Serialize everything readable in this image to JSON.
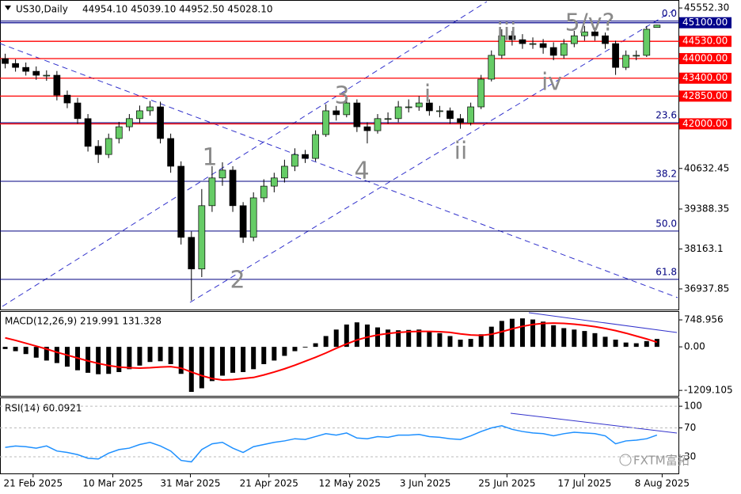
{
  "chart_data": [
    {
      "type": "candlestick",
      "title": "US30,Daily",
      "subtitle": "44954.10 45039.10 44952.50 45028.10",
      "up_color": "#66cc66",
      "down_color": "#000000",
      "open": [
        44000,
        43850,
        43730,
        43610,
        43490,
        43490,
        42880,
        42640,
        42160,
        41310,
        41060,
        41550,
        41910,
        42160,
        42400,
        42520,
        41550,
        40700,
        38520,
        37550,
        39490,
        40340,
        40580,
        39490,
        38520,
        39730,
        40090,
        40340,
        40700,
        41060,
        40940,
        41670,
        42400,
        42280,
        42640,
        41910,
        41790,
        42160,
        42160,
        42520,
        42520,
        42640,
        42400,
        42400,
        42160,
        42030,
        42520,
        43370,
        44100,
        44700,
        44580,
        44460,
        44460,
        44340,
        44100,
        44460,
        44700,
        44820,
        44700,
        44460,
        43730,
        44100,
        44100,
        44954.1
      ],
      "high": [
        44150,
        43980,
        43880,
        43760,
        43640,
        43620,
        43020,
        42800,
        42300,
        41500,
        41700,
        42060,
        42300,
        42560,
        42700,
        42680,
        41700,
        40850,
        38700,
        40000,
        40700,
        40820,
        40700,
        39600,
        39900,
        40300,
        40500,
        40900,
        41250,
        41200,
        41800,
        42600,
        42550,
        42850,
        42750,
        42050,
        42300,
        42350,
        42700,
        42750,
        42850,
        42750,
        42550,
        42500,
        42300,
        42650,
        43500,
        44250,
        44900,
        44850,
        44750,
        44650,
        44600,
        44500,
        44600,
        44850,
        45000,
        44950,
        44800,
        44550,
        44250,
        44250,
        45000,
        45039.1
      ],
      "low": [
        43700,
        43600,
        43480,
        43350,
        43320,
        42720,
        42480,
        42000,
        41150,
        40800,
        40950,
        41400,
        41780,
        42020,
        42250,
        41400,
        40500,
        38300,
        36580,
        37300,
        39300,
        40100,
        39300,
        38350,
        38400,
        39600,
        39900,
        40200,
        40550,
        40800,
        40850,
        41600,
        42100,
        42200,
        41750,
        41400,
        41700,
        42000,
        42050,
        42350,
        42400,
        42250,
        42200,
        42000,
        41850,
        41950,
        42450,
        43300,
        44000,
        44400,
        44300,
        44300,
        44150,
        43950,
        44000,
        44350,
        44550,
        44550,
        44300,
        43500,
        43650,
        43950,
        44050,
        44952.5
      ],
      "close": [
        43850,
        43730,
        43610,
        43490,
        43490,
        42880,
        42640,
        42160,
        41310,
        41060,
        41550,
        41910,
        42160,
        42400,
        42520,
        41550,
        40700,
        38520,
        37550,
        39490,
        40340,
        40580,
        39490,
        38520,
        39730,
        40090,
        40340,
        40700,
        41060,
        40940,
        41670,
        42400,
        42280,
        42640,
        41910,
        41790,
        42160,
        42160,
        42520,
        42520,
        42640,
        42400,
        42400,
        42160,
        42030,
        42520,
        43370,
        44100,
        44700,
        44580,
        44460,
        44460,
        44340,
        44100,
        44460,
        44700,
        44820,
        44700,
        44460,
        43730,
        44100,
        44100,
        44900,
        45028.1
      ],
      "ylim": [
        36330,
        45700
      ],
      "yticks": [
        {
          "value": 45552.3,
          "label": "45552.30"
        },
        40632.45,
        39388.35,
        38163.1,
        36937.85
      ],
      "xlim": [
        -0.5,
        65
      ],
      "xticks": [
        {
          "value": 2.7,
          "label": "21 Feb 2025"
        },
        {
          "value": 10.4,
          "label": "10 Mar 2025"
        },
        {
          "value": 17.9,
          "label": "31 Mar 2025"
        },
        {
          "value": 25.5,
          "label": "21 Apr 2025"
        },
        {
          "value": 33.3,
          "label": "12 May 2025"
        },
        {
          "value": 40.6,
          "label": "3 Jun 2025"
        },
        {
          "value": 48.5,
          "label": "25 Jun 2025"
        },
        {
          "value": 56,
          "label": "17 Jul 2025"
        },
        {
          "value": 63.5,
          "label": "8 Aug 2025"
        }
      ],
      "levels": [
        {
          "value": 45100,
          "label": "45100.00",
          "color": "#00008b"
        },
        {
          "value": 44530,
          "label": "44530.00",
          "color": "#ff0000"
        },
        {
          "value": 44000,
          "label": "44000.00",
          "color": "#ff0000"
        },
        {
          "value": 43400,
          "label": "43400.00",
          "color": "#ff0000"
        },
        {
          "value": 42850,
          "label": "42850.00",
          "color": "#ff0000"
        },
        {
          "value": 42000,
          "label": "42000.00",
          "color": "#ff0000"
        }
      ],
      "fib_levels": [
        {
          "value": 45150,
          "label": "0.0"
        },
        {
          "value": 42034,
          "label": "23.6"
        },
        {
          "value": 40239,
          "label": "38.2"
        },
        {
          "value": 38711,
          "label": "50.0"
        },
        {
          "value": 37231,
          "label": "61.8"
        }
      ],
      "fib_color": "#000080",
      "annotations": [
        "1",
        "2",
        "3",
        "4",
        "i",
        "ii",
        "iii",
        "iv",
        "5/v?"
      ],
      "watermark": "FXTM富拓"
    },
    {
      "type": "macd",
      "title": "MACD(12,26,9) 219.991 131.328",
      "ylim": [
        -1360,
        970
      ],
      "yticks": [
        748.956,
        {
          "value": 0,
          "label": "0.00"
        },
        -1209.105
      ],
      "series": [
        {
          "name": "MACD",
          "color": "#000000",
          "values": [
            -60,
            -120,
            -200,
            -300,
            -380,
            -450,
            -550,
            -650,
            -720,
            -760,
            -750,
            -700,
            -620,
            -520,
            -420,
            -400,
            -480,
            -750,
            -1250,
            -1150,
            -950,
            -800,
            -720,
            -700,
            -620,
            -480,
            -380,
            -250,
            -120,
            -20,
            100,
            300,
            480,
            620,
            680,
            620,
            540,
            480,
            460,
            470,
            480,
            430,
            380,
            300,
            200,
            220,
            350,
            560,
            720,
            780,
            790,
            760,
            700,
            600,
            520,
            480,
            440,
            380,
            280,
            200,
            120,
            100,
            160,
            219.991
          ]
        },
        {
          "name": "Signal",
          "color": "#ff0000",
          "values": [
            250,
            180,
            100,
            20,
            -60,
            -150,
            -230,
            -310,
            -390,
            -460,
            -520,
            -560,
            -580,
            -590,
            -580,
            -560,
            -550,
            -590,
            -700,
            -800,
            -880,
            -920,
            -910,
            -880,
            -850,
            -780,
            -700,
            -610,
            -510,
            -400,
            -290,
            -170,
            -40,
            80,
            190,
            270,
            330,
            370,
            400,
            420,
            430,
            430,
            420,
            400,
            360,
            330,
            320,
            350,
            420,
            500,
            570,
            620,
            650,
            660,
            650,
            630,
            600,
            560,
            510,
            450,
            380,
            300,
            220,
            131.328
          ]
        }
      ]
    },
    {
      "type": "line",
      "title": "RSI(14) 60.0921",
      "ylim": [
        7,
        110
      ],
      "yticks": [
        100,
        70,
        30
      ],
      "color": "#1e90ff",
      "values": [
        43,
        45,
        44,
        42,
        45,
        38,
        36,
        33,
        28,
        27,
        35,
        40,
        42,
        47,
        50,
        45,
        38,
        25,
        23,
        40,
        48,
        50,
        42,
        36,
        44,
        47,
        50,
        52,
        55,
        54,
        58,
        62,
        60,
        63,
        56,
        55,
        58,
        57,
        60,
        60,
        61,
        58,
        57,
        55,
        54,
        59,
        65,
        70,
        73,
        68,
        65,
        63,
        62,
        59,
        62,
        64,
        63,
        62,
        59,
        48,
        52,
        53,
        55,
        60.0921
      ]
    }
  ]
}
